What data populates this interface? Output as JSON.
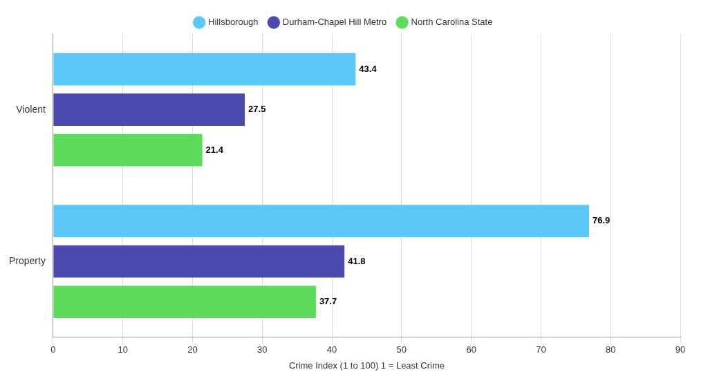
{
  "chart_data": {
    "type": "bar",
    "orientation": "horizontal",
    "categories": [
      "Violent",
      "Property"
    ],
    "series": [
      {
        "name": "Hillsborough",
        "color": "#5BC8F5",
        "values": [
          43.4,
          76.9
        ]
      },
      {
        "name": "Durham-Chapel Hill Metro",
        "color": "#4B4BAF",
        "values": [
          27.5,
          41.8
        ]
      },
      {
        "name": "North Carolina State",
        "color": "#5CDB5C",
        "values": [
          21.4,
          37.7
        ]
      }
    ],
    "xlabel": "Crime Index (1 to 100) 1 = Least Crime",
    "xlim": [
      0,
      90
    ],
    "xticks": [
      0,
      10,
      20,
      30,
      40,
      50,
      60,
      70,
      80,
      90
    ],
    "grid": true,
    "legend": "top",
    "data_labels": true
  }
}
